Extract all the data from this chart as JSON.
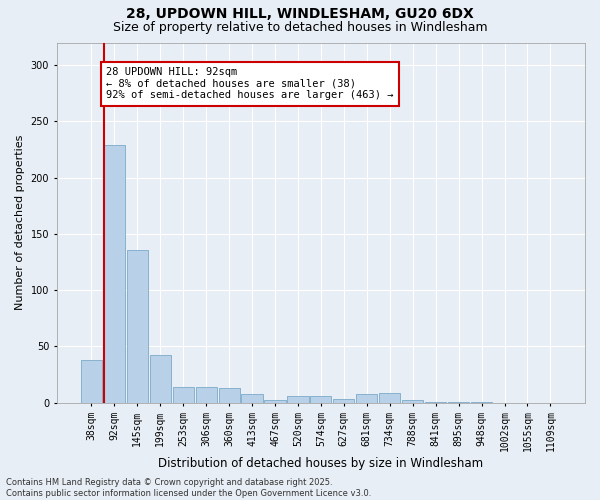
{
  "title_line1": "28, UPDOWN HILL, WINDLESHAM, GU20 6DX",
  "title_line2": "Size of property relative to detached houses in Windlesham",
  "xlabel": "Distribution of detached houses by size in Windlesham",
  "ylabel": "Number of detached properties",
  "categories": [
    "38sqm",
    "92sqm",
    "145sqm",
    "199sqm",
    "253sqm",
    "306sqm",
    "360sqm",
    "413sqm",
    "467sqm",
    "520sqm",
    "574sqm",
    "627sqm",
    "681sqm",
    "734sqm",
    "788sqm",
    "841sqm",
    "895sqm",
    "948sqm",
    "1002sqm",
    "1055sqm",
    "1109sqm"
  ],
  "values": [
    38,
    229,
    136,
    42,
    14,
    14,
    13,
    8,
    2,
    6,
    6,
    3,
    8,
    9,
    2,
    1,
    1,
    1,
    0,
    0,
    0
  ],
  "bar_color": "#b8d0e8",
  "bar_edgecolor": "#6a9fc0",
  "vline_color": "#cc0000",
  "vline_x_idx": 1,
  "annotation_text": "28 UPDOWN HILL: 92sqm\n← 8% of detached houses are smaller (38)\n92% of semi-detached houses are larger (463) →",
  "annotation_box_facecolor": "#ffffff",
  "annotation_box_edgecolor": "#cc0000",
  "annotation_fontsize": 7.5,
  "ylim": [
    0,
    320
  ],
  "yticks": [
    0,
    50,
    100,
    150,
    200,
    250,
    300
  ],
  "background_color": "#e8eef5",
  "grid_color": "#ffffff",
  "footer_text": "Contains HM Land Registry data © Crown copyright and database right 2025.\nContains public sector information licensed under the Open Government Licence v3.0.",
  "title_fontsize": 10,
  "subtitle_fontsize": 9,
  "xlabel_fontsize": 8.5,
  "ylabel_fontsize": 8,
  "tick_fontsize": 7
}
